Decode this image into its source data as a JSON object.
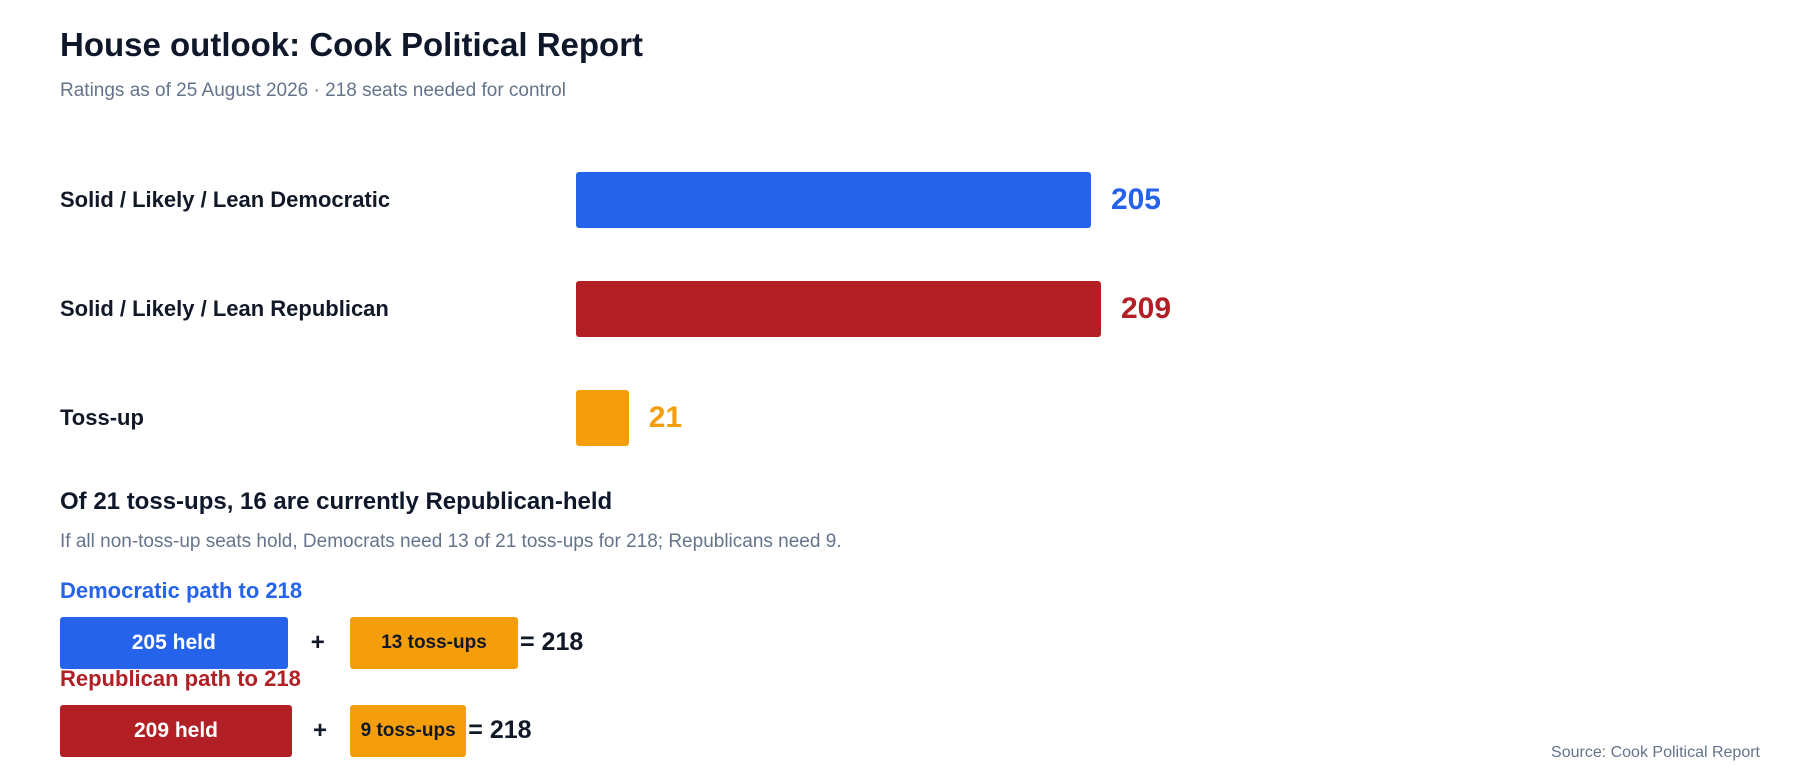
{
  "chart_data": {
    "type": "bar",
    "orientation": "horizontal",
    "title": "House outlook: Cook Political Report",
    "subtitle": "Ratings as of 25 August 2026 · 218 seats needed for control",
    "categories": [
      "Solid / Likely / Lean Democratic",
      "Solid / Likely / Lean Republican",
      "Toss-up"
    ],
    "values": [
      205,
      209,
      21
    ],
    "value_labels": [
      "205",
      "209",
      "21"
    ],
    "colors": [
      "#2563eb",
      "#b21f24",
      "#f59e0b"
    ],
    "xlim": [
      0,
      209
    ],
    "grid": false
  },
  "note": {
    "title": "Of 21 toss-ups, 16 are currently Republican-held",
    "subtitle": "If all non-toss-up seats hold, Democrats need 13 of 21 toss-ups for 218; Republicans need 9."
  },
  "paths": [
    {
      "title": "Democratic path to 218",
      "color": "#2563eb",
      "held": 205,
      "held_label": "205 held",
      "tossups": 13,
      "tossup_label": "13 toss-ups",
      "plus": "+",
      "total_label": "= 218"
    },
    {
      "title": "Republican path to 218",
      "color": "#b21f24",
      "held": 209,
      "held_label": "209 held",
      "tossups": 9,
      "tossup_label": "9 toss-ups",
      "plus": "+",
      "total_label": "= 218"
    }
  ],
  "source": "Source: Cook Political Report"
}
